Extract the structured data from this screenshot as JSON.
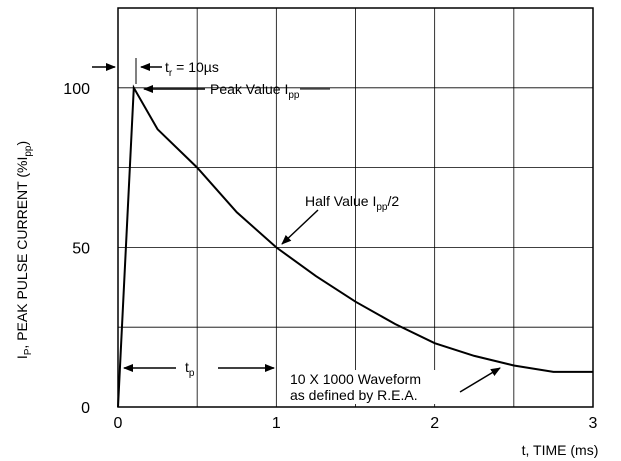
{
  "chart_data": {
    "type": "line",
    "xlabel": "t, TIME (ms)",
    "ylabel": {
      "main": "I",
      "main_sub": "P",
      "text": ", PEAK PULSE CURRENT (%I",
      "text_sub": "pp",
      "end": ")"
    },
    "xlim": [
      0,
      3
    ],
    "ylim": [
      0,
      125
    ],
    "x_ticks": [
      "0",
      "1",
      "2",
      "3"
    ],
    "x_tick_values": [
      0,
      1,
      2,
      3
    ],
    "y_ticks": [
      "0",
      "50",
      "100"
    ],
    "y_tick_values": [
      0,
      50,
      100
    ],
    "grid": true,
    "gridlines_x": [
      0.5,
      1,
      1.5,
      2,
      2.5,
      3
    ],
    "gridlines_y": [
      25,
      50,
      75,
      100,
      125
    ],
    "series": [
      {
        "x": [
          0,
          0.1,
          0.25,
          0.5,
          0.75,
          1,
          1.25,
          1.5,
          1.75,
          2,
          2.25,
          2.5,
          2.75,
          3
        ],
        "y": [
          0,
          100,
          87,
          75,
          61,
          50,
          41,
          33,
          26,
          20,
          16,
          13,
          11,
          11
        ]
      }
    ],
    "annotations": {
      "rise": {
        "main": "t",
        "sub": "r",
        "rest": " = 10µs"
      },
      "peak": {
        "main": "Peak Value I",
        "sub": "pp"
      },
      "half": {
        "main": "Half Value I",
        "sub": "pp",
        "rest": "/2"
      },
      "tp": {
        "main": "t",
        "sub": "p"
      },
      "waveform_line1": "10 X 1000 Waveform",
      "waveform_line2": "as defined by R.E.A."
    },
    "colors": {
      "line": "#000000",
      "grid": "#000000",
      "background": "#ffffff"
    }
  }
}
